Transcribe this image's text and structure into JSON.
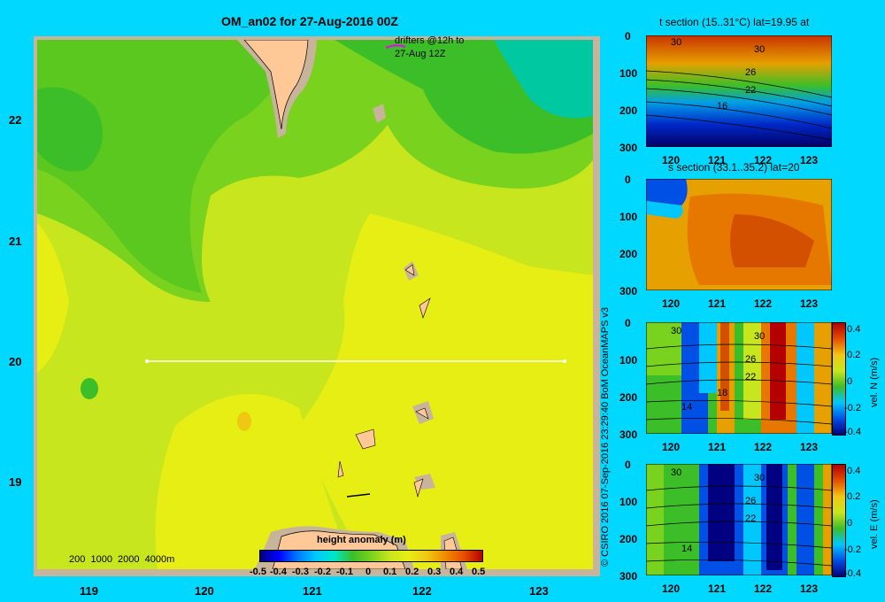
{
  "title": "OM_an02 for 27-Aug-2016 00Z",
  "drifters_label_1": "drifters @12h to",
  "drifters_label_2": "27-Aug 12Z",
  "map": {
    "lat_ticks": [
      "22",
      "21",
      "20",
      "19"
    ],
    "lon_ticks": [
      "119",
      "120",
      "121",
      "122",
      "123"
    ],
    "depth_legend": "200  1000  2000  4000m",
    "colorbar_title": "height anomaly  (m)",
    "colorbar_ticks": [
      "-0.5",
      "-0.4",
      "-0.3",
      "-0.2",
      "-0.1",
      "0",
      "0.1",
      "0.2",
      "0.3",
      "0.4",
      "0.5"
    ]
  },
  "credit": "© CSIRO 2016   07-Sep-2016 23:29:40 BoM OceanMAPS v3",
  "panels": [
    {
      "title": "t section (15..31°C) lat=19.95 at",
      "y_ticks": [
        "0",
        "100",
        "200",
        "300"
      ],
      "x_ticks": [
        "120",
        "121",
        "122",
        "123"
      ],
      "contour_labels": [
        "30",
        "30",
        "26",
        "22",
        "16"
      ]
    },
    {
      "title": "s section (33.1..35.2) lat=20",
      "y_ticks": [
        "0",
        "100",
        "200",
        "300"
      ],
      "x_ticks": [
        "120",
        "121",
        "122",
        "123"
      ]
    },
    {
      "title": "",
      "y_ticks": [
        "0",
        "100",
        "200",
        "300"
      ],
      "x_ticks": [
        "120",
        "121",
        "122",
        "123"
      ],
      "contour_labels": [
        "30",
        "30",
        "26",
        "22",
        "18",
        "14"
      ],
      "cbar_label": "vel. N  (m/s)",
      "cbar_ticks": [
        "0.4",
        "0.2",
        "0",
        "-0.2",
        "-0.4"
      ]
    },
    {
      "title": "",
      "y_ticks": [
        "0",
        "100",
        "200",
        "300"
      ],
      "x_ticks": [
        "120",
        "121",
        "122",
        "123"
      ],
      "contour_labels": [
        "30",
        "30",
        "26",
        "22",
        "14"
      ],
      "cbar_label": "vel. E  (m/s)",
      "cbar_ticks": [
        "0.4",
        "0.2",
        "0",
        "-0.2",
        "-0.4"
      ]
    }
  ],
  "colors": {
    "background": "#00d8ff",
    "land": "#ffc896",
    "shelf": "#c8b49a"
  }
}
